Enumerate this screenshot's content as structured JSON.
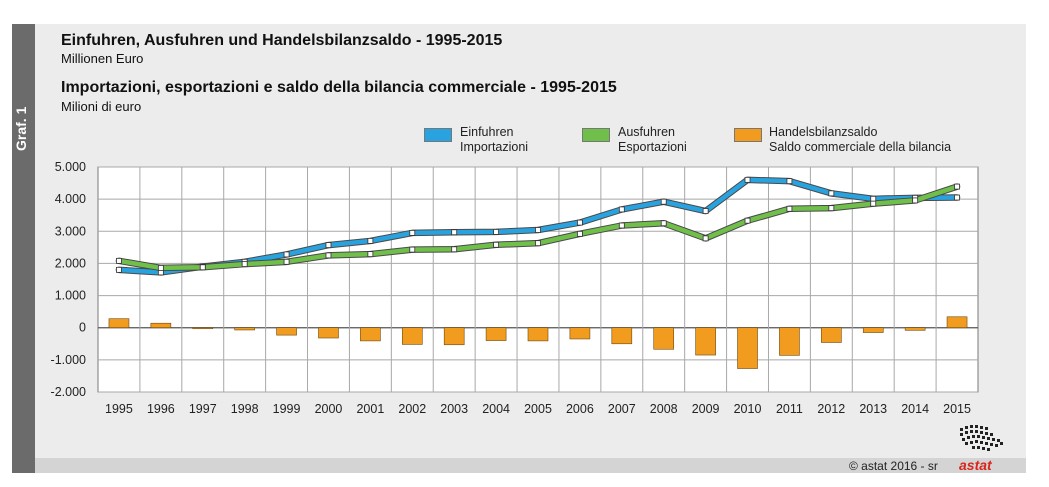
{
  "sidebar": {
    "label": "Graf. 1"
  },
  "titles": {
    "title_de": "Einfuhren, Ausfuhren und Handelsbilanzsaldo - 1995-2015",
    "subtitle_de": "Millionen Euro",
    "title_it": "Importazioni, esportazioni e saldo della bilancia commerciale - 1995-2015",
    "subtitle_it": "Milioni di euro"
  },
  "legend": [
    {
      "line1": "Einfuhren",
      "line2": "Importazioni",
      "color": "#29a3e0"
    },
    {
      "line1": "Ausfuhren",
      "line2": "Esportazioni",
      "color": "#6fbf4a"
    },
    {
      "line1": "Handelsbilanzsaldo",
      "line2": "Saldo commerciale della bilancia",
      "color": "#f29c1f"
    }
  ],
  "footer": {
    "copyright": "© astat 2016 - sr",
    "logo": "astat"
  },
  "chart_data": {
    "type": "line",
    "categories": [
      "1995",
      "1996",
      "1997",
      "1998",
      "1999",
      "2000",
      "2001",
      "2002",
      "2003",
      "2004",
      "2005",
      "2006",
      "2007",
      "2008",
      "2009",
      "2010",
      "2011",
      "2012",
      "2013",
      "2014",
      "2015"
    ],
    "ylim": [
      -2000,
      5000
    ],
    "yticks": [
      5000,
      4000,
      3000,
      2000,
      1000,
      0,
      -1000,
      -2000
    ],
    "ytick_labels": [
      "5.000",
      "4.000",
      "3.000",
      "2.000",
      "1.000",
      "0",
      "-1.000",
      "-2.000"
    ],
    "grid": true,
    "legend_position": "top-right",
    "series": [
      {
        "name": "Einfuhren / Importazioni",
        "kind": "line",
        "color": "#29a3e0",
        "values": [
          1800,
          1720,
          1900,
          2050,
          2280,
          2570,
          2700,
          2950,
          2970,
          2980,
          3040,
          3270,
          3680,
          3920,
          3630,
          4600,
          4560,
          4180,
          4010,
          4040,
          4050
        ]
      },
      {
        "name": "Ausfuhren / Esportazioni",
        "kind": "line",
        "color": "#6fbf4a",
        "values": [
          2080,
          1860,
          1880,
          1980,
          2050,
          2250,
          2290,
          2430,
          2440,
          2580,
          2630,
          2920,
          3180,
          3250,
          2780,
          3330,
          3700,
          3720,
          3860,
          3960,
          4390
        ]
      },
      {
        "name": "Handelsbilanzsaldo / Saldo commerciale della bilancia",
        "kind": "bar",
        "color": "#f29c1f",
        "values": [
          280,
          140,
          -20,
          -70,
          -230,
          -320,
          -410,
          -520,
          -530,
          -400,
          -410,
          -350,
          -500,
          -670,
          -850,
          -1270,
          -860,
          -460,
          -150,
          -80,
          340
        ]
      }
    ]
  }
}
